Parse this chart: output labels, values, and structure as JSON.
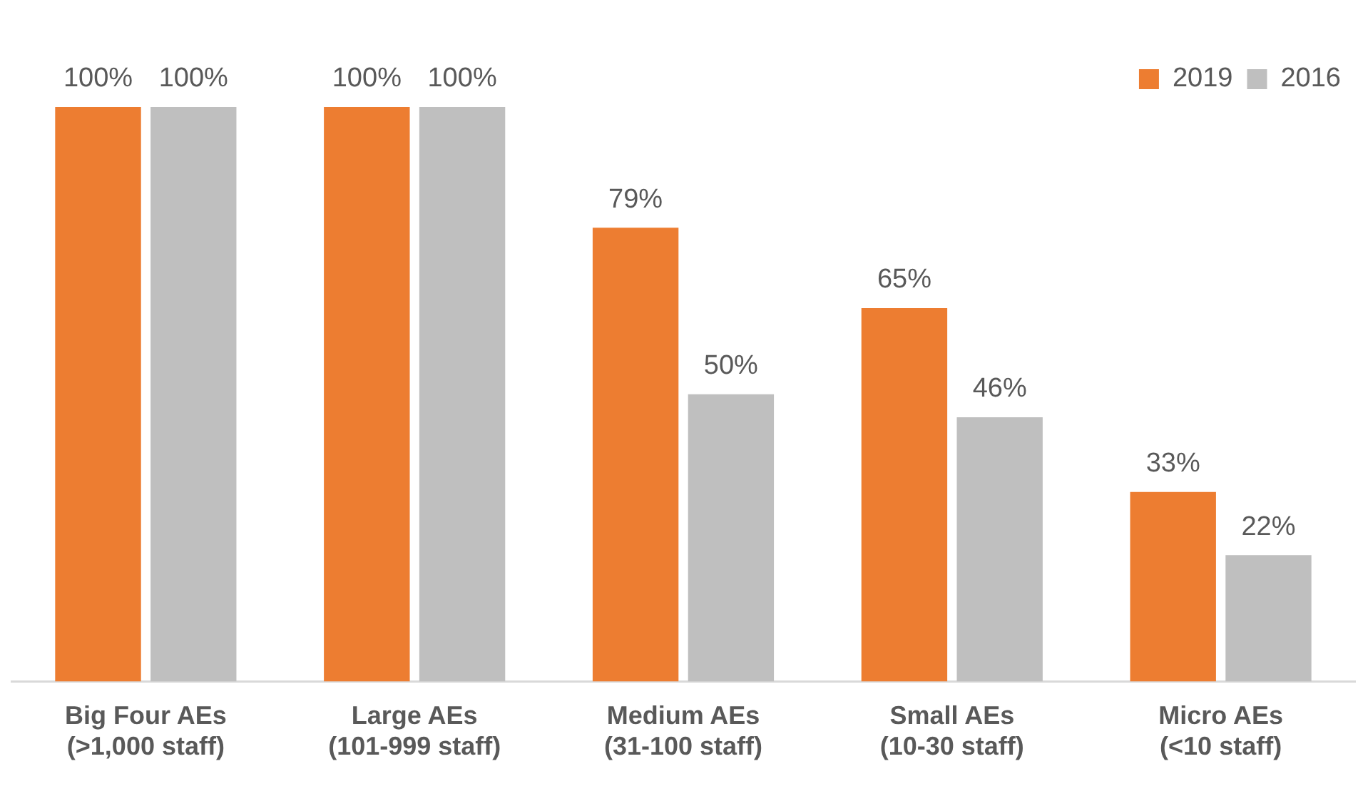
{
  "chart_data": {
    "type": "bar",
    "categories": [
      "Big Four AEs\n(>1,000 staff)",
      "Large AEs\n(101-999 staff)",
      "Medium AEs\n(31-100 staff)",
      "Small AEs\n(10-30 staff)",
      "Micro AEs\n(<10 staff)"
    ],
    "series": [
      {
        "name": "2019",
        "color": "#ed7d31",
        "values": [
          100,
          100,
          79,
          65,
          33
        ],
        "value_labels": [
          "100%",
          "100%",
          "79%",
          "65%",
          "33%"
        ]
      },
      {
        "name": "2016",
        "color": "#bfbfbf",
        "values": [
          100,
          100,
          50,
          46,
          22
        ],
        "value_labels": [
          "100%",
          "100%",
          "50%",
          "46%",
          "22%"
        ]
      }
    ],
    "grid": false,
    "legend": "top right",
    "tick_labels": "x"
  }
}
